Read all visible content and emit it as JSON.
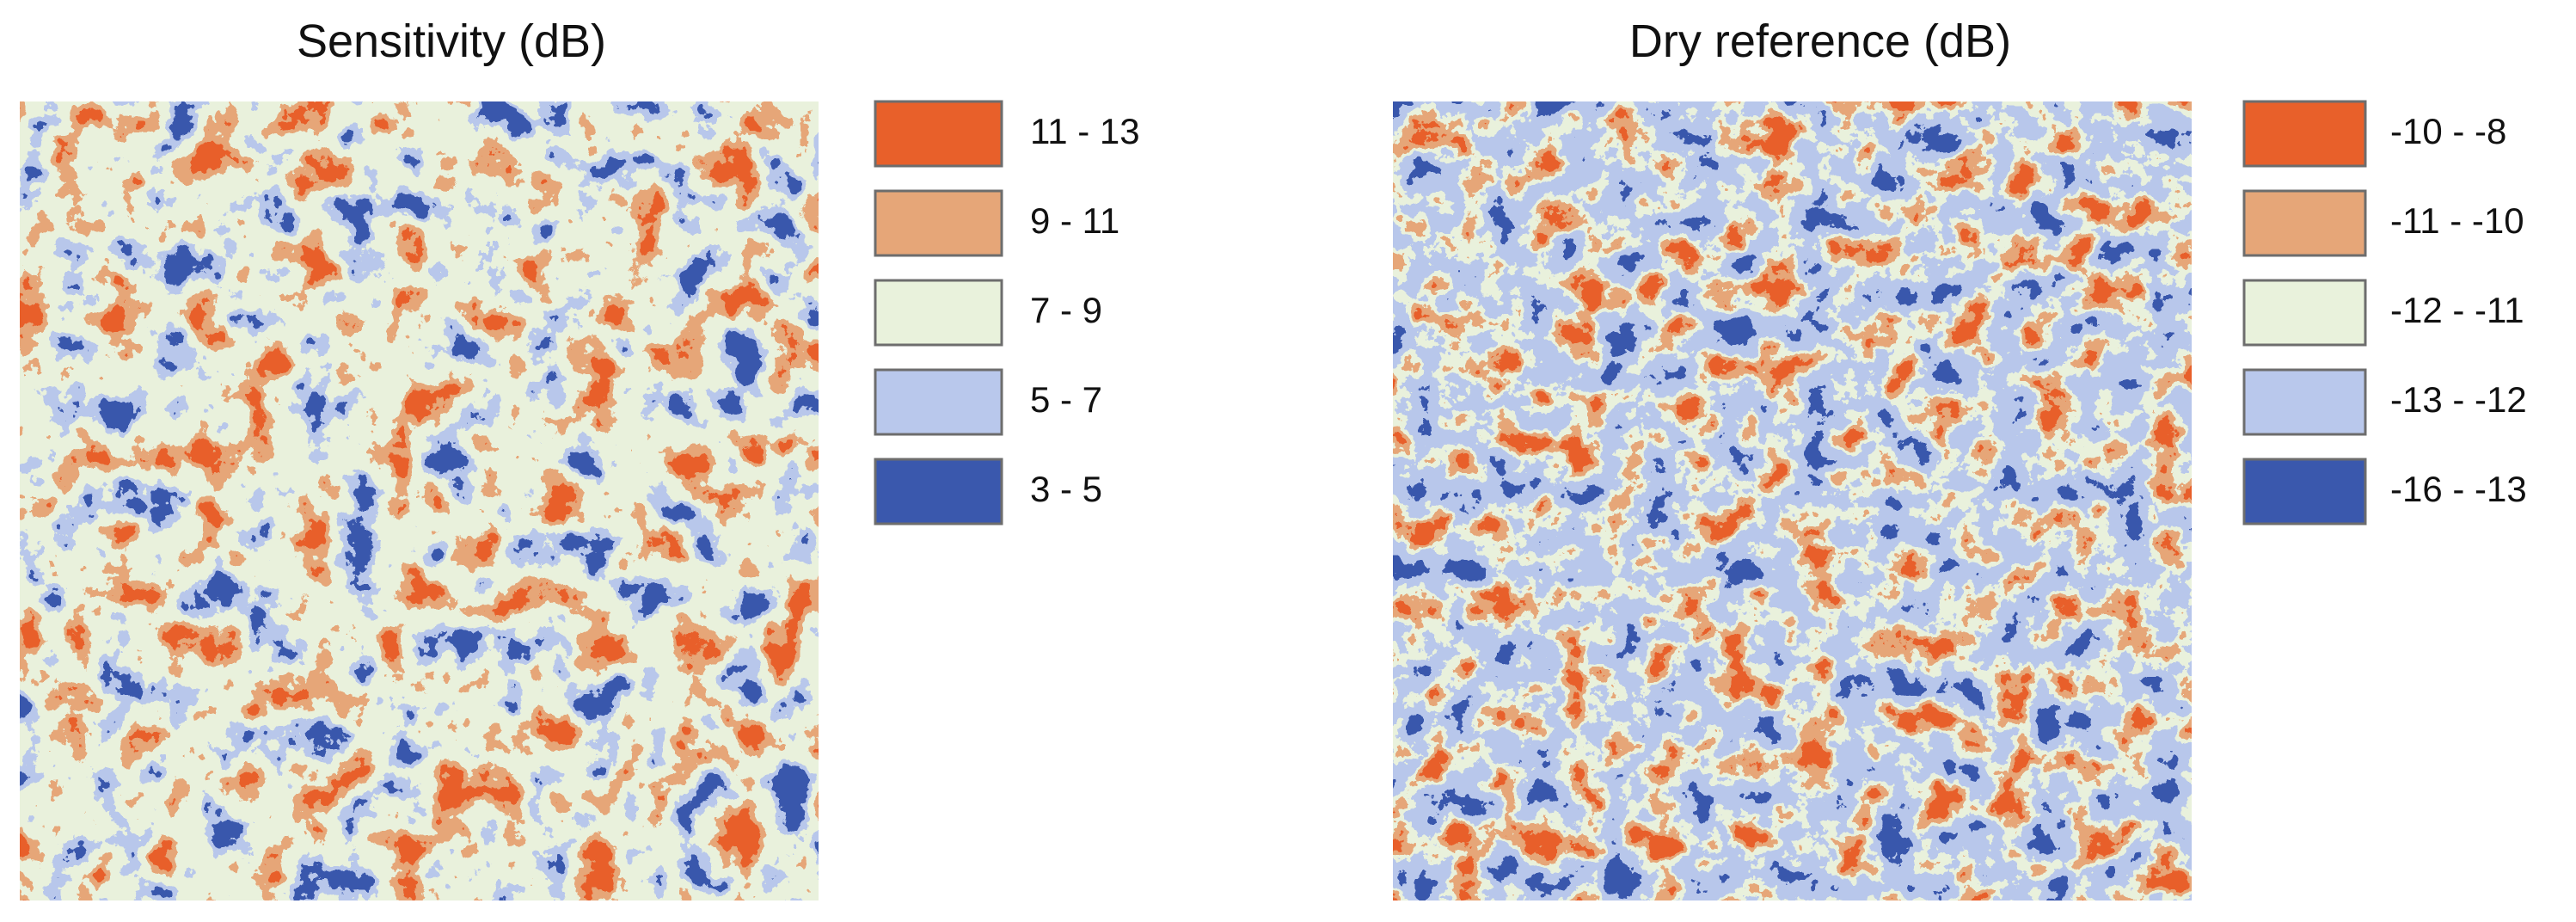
{
  "maps": [
    {
      "title": "Sensitivity (dB)",
      "legend": [
        {
          "label": "11 - 13",
          "color": "#e8602a"
        },
        {
          "label": "9 - 11",
          "color": "#e6a678"
        },
        {
          "label": "7 - 9",
          "color": "#e9f2dc"
        },
        {
          "label": "5 - 7",
          "color": "#b9c8ec"
        },
        {
          "label": "3 - 5",
          "color": "#3a58ad"
        }
      ]
    },
    {
      "title": "Dry reference (dB)",
      "legend": [
        {
          "label": "-10 - -8",
          "color": "#e8602a"
        },
        {
          "label": "-11 - -10",
          "color": "#e6a678"
        },
        {
          "label": "-12 - -11",
          "color": "#e9f2dc"
        },
        {
          "label": "-13 - -12",
          "color": "#b9c8ec"
        },
        {
          "label": "-16 - -13",
          "color": "#3a58ad"
        }
      ]
    }
  ]
}
